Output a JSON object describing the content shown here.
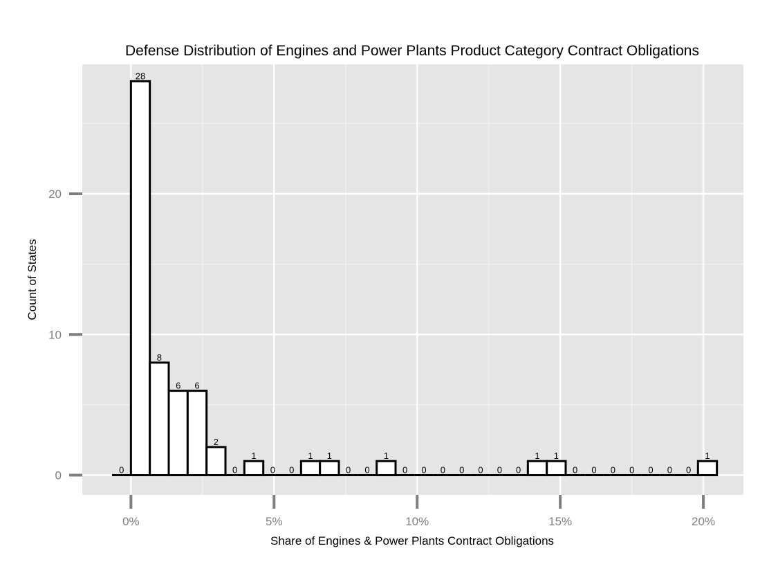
{
  "chart_data": {
    "type": "bar",
    "title": "Defense Distribution of Engines and Power Plants Product Category Contract Obligations",
    "xlabel": "Share of Engines & Power Plants Contract Obligations",
    "ylabel": "Count of States",
    "x_ticks": [
      "0%",
      "5%",
      "10%",
      "15%",
      "20%"
    ],
    "x_tick_values": [
      0,
      5,
      10,
      15,
      20
    ],
    "y_ticks": [
      "0",
      "10",
      "20"
    ],
    "y_tick_values": [
      0,
      10,
      20
    ],
    "xlim": [
      -1.7,
      21.4
    ],
    "ylim": [
      -1.4,
      29.2
    ],
    "bin_width_percent": 0.6604,
    "bin_centers_percent": [
      -0.33,
      0.33,
      0.99,
      1.651,
      2.311,
      2.972,
      3.632,
      4.293,
      4.953,
      5.614,
      6.274,
      6.935,
      7.595,
      8.255,
      8.916,
      9.576,
      10.237,
      10.897,
      11.558,
      12.218,
      12.879,
      13.539,
      14.199,
      14.86,
      15.52,
      16.181,
      16.841,
      17.502,
      18.162,
      18.823,
      19.483,
      20.143
    ],
    "values": [
      0,
      28,
      8,
      6,
      6,
      2,
      0,
      1,
      0,
      0,
      1,
      1,
      0,
      0,
      1,
      0,
      0,
      0,
      0,
      0,
      0,
      0,
      1,
      1,
      0,
      0,
      0,
      0,
      0,
      0,
      0,
      1
    ],
    "data_labels": [
      "0",
      "28",
      "8",
      "6",
      "6",
      "2",
      "0",
      "1",
      "0",
      "0",
      "1",
      "1",
      "0",
      "0",
      "1",
      "0",
      "0",
      "0",
      "0",
      "0",
      "0",
      "0",
      "1",
      "1",
      "0",
      "0",
      "0",
      "0",
      "0",
      "0",
      "0",
      "1"
    ],
    "grid": true,
    "legend": "none",
    "colors": {
      "panel_background": "#e5e5e5",
      "grid_major": "#ffffff",
      "grid_minor": "#f2f2f2",
      "bar_fill": "#ffffff",
      "bar_outline": "#000000",
      "tick_mark": "#7f7f7f"
    }
  }
}
